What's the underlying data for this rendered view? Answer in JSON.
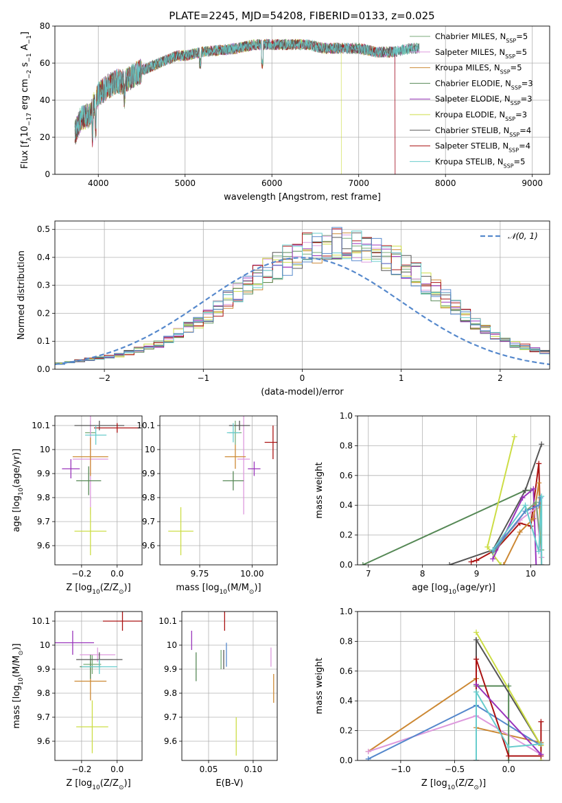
{
  "figure_title": "PLATE=2245, MJD=54208, FIBERID=0133, z=0.025",
  "colors": {
    "Chabrier MILES": "#77aa77",
    "Salpeter MILES": "#dd99dd",
    "Kroupa MILES": "#cc8833",
    "Chabrier ELODIE": "#558855",
    "Salpeter ELODIE": "#9933bb",
    "Kroupa ELODIE": "#ccdd44",
    "Chabrier STELIB": "#555555",
    "Salpeter STELIB": "#aa1111",
    "Kroupa STELIB": "#66cccc",
    "normal": "#5588cc"
  },
  "chart_data": [
    {
      "id": "spectrum",
      "type": "line",
      "title": "PLATE=2245, MJD=54208, FIBERID=0133, z=0.025",
      "xlabel": "wavelength [Angstrom, rest frame]",
      "ylabel_parts": [
        "Flux [f",
        "λ",
        "10",
        "−17",
        " erg cm",
        "−2",
        " s",
        "−1",
        " A",
        "−1",
        "]"
      ],
      "xlim": [
        3500,
        9200
      ],
      "ylim": [
        0,
        80
      ],
      "xticks": [
        4000,
        5000,
        6000,
        7000,
        8000,
        9000
      ],
      "yticks": [
        0,
        20,
        40,
        60,
        80
      ],
      "legend_position": "upper-right",
      "legend": [
        {
          "name": "Chabrier MILES",
          "nssp": "5"
        },
        {
          "name": "Salpeter MILES",
          "nssp": "5"
        },
        {
          "name": "Kroupa MILES",
          "nssp": "5"
        },
        {
          "name": "Chabrier ELODIE",
          "nssp": "3"
        },
        {
          "name": "Salpeter ELODIE",
          "nssp": "3"
        },
        {
          "name": "Kroupa ELODIE",
          "nssp": "3"
        },
        {
          "name": "Chabrier STELIB",
          "nssp": "4"
        },
        {
          "name": "Salpeter STELIB",
          "nssp": "4"
        },
        {
          "name": "Kroupa STELIB",
          "nssp": "5"
        }
      ],
      "continuum_x": [
        3730,
        3800,
        3900,
        4000,
        4100,
        4200,
        4300,
        4400,
        4500,
        4600,
        4700,
        4800,
        4900,
        5000,
        5200,
        5400,
        5600,
        5800,
        6000,
        6200,
        6400,
        6600,
        6800,
        7000,
        7200,
        7400,
        7600,
        7700
      ],
      "continuum_y": [
        22,
        30,
        32,
        43,
        47,
        50,
        50,
        53,
        56,
        58,
        60,
        62,
        64,
        64,
        66,
        67,
        68,
        70,
        70,
        70,
        70,
        68,
        68,
        68,
        66,
        66,
        68,
        68
      ],
      "model_ends": [
        {
          "model": "Kroupa ELODIE",
          "x": 6800
        },
        {
          "model": "Salpeter STELIB",
          "x": 7420
        },
        {
          "model": "Salpeter ELODIE",
          "x": 7420
        },
        {
          "model": "Kroupa MILES",
          "x": 7420
        }
      ]
    },
    {
      "id": "residuals",
      "type": "histogram",
      "xlabel": "(data-model)/error",
      "ylabel": "Normed distribution",
      "xlim": [
        -2.5,
        2.5
      ],
      "ylim": [
        0,
        0.53
      ],
      "xticks": [
        -2,
        -1,
        0,
        1,
        2
      ],
      "xtick_labels": [
        "−2",
        "−1",
        "0",
        "1",
        "2"
      ],
      "yticks": [
        0.0,
        0.1,
        0.2,
        0.3,
        0.4,
        0.5
      ],
      "bin_width": 0.1,
      "envelope": [
        0.02,
        0.025,
        0.03,
        0.035,
        0.04,
        0.045,
        0.05,
        0.06,
        0.07,
        0.08,
        0.09,
        0.11,
        0.13,
        0.15,
        0.17,
        0.19,
        0.22,
        0.25,
        0.28,
        0.31,
        0.33,
        0.35,
        0.37,
        0.39,
        0.41,
        0.43,
        0.44,
        0.45,
        0.45,
        0.44,
        0.44,
        0.43,
        0.42,
        0.41,
        0.39,
        0.37,
        0.34,
        0.31,
        0.28,
        0.25,
        0.22,
        0.19,
        0.16,
        0.14,
        0.12,
        0.1,
        0.09,
        0.08,
        0.07,
        0.06,
        0.05,
        0.045,
        0.04,
        0.035,
        0.03,
        0.025,
        0.025,
        0.02,
        0.02,
        0.02
      ],
      "gaussian_label": "𝒩(0, 1)",
      "legend_position": "upper-right"
    },
    {
      "id": "age-vs-Z",
      "type": "errorbar",
      "xlabel_parts": [
        "Z [log",
        "10",
        "(Z/Z",
        "⊙",
        ")]"
      ],
      "ylabel_parts": [
        "age  [log",
        "10",
        "(age/yr)]"
      ],
      "xlim": [
        -0.35,
        0.14
      ],
      "ylim": [
        9.52,
        10.14
      ],
      "xticks": [
        -0.2,
        0.0
      ],
      "xtick_labels": [
        "−0.2",
        "0.0"
      ],
      "yticks": [
        9.6,
        9.7,
        9.8,
        9.9,
        10.0,
        10.1
      ],
      "points": [
        {
          "model": "Chabrier MILES",
          "x": -0.15,
          "xerr": 0.03,
          "y": 10.07,
          "yerr": 0.05
        },
        {
          "model": "Salpeter MILES",
          "x": -0.15,
          "xerr": 0.1,
          "y": 9.96,
          "yerr": 0.23
        },
        {
          "model": "Kroupa MILES",
          "x": -0.15,
          "xerr": 0.1,
          "y": 9.97,
          "yerr": 0.08
        },
        {
          "model": "Chabrier ELODIE",
          "x": -0.16,
          "xerr": 0.07,
          "y": 9.87,
          "yerr": 0.06
        },
        {
          "model": "Salpeter ELODIE",
          "x": -0.26,
          "xerr": 0.05,
          "y": 9.92,
          "yerr": 0.04
        },
        {
          "model": "Kroupa ELODIE",
          "x": -0.15,
          "xerr": 0.09,
          "y": 9.66,
          "yerr": 0.1
        },
        {
          "model": "Chabrier STELIB",
          "x": -0.1,
          "xerr": 0.14,
          "y": 10.1,
          "yerr": 0.02
        },
        {
          "model": "Salpeter STELIB",
          "x": 0.0,
          "xerr": 0.13,
          "y": 10.09,
          "yerr": 0.02
        },
        {
          "model": "Kroupa STELIB",
          "x": -0.12,
          "xerr": 0.06,
          "y": 10.06,
          "yerr": 0.04
        }
      ]
    },
    {
      "id": "age-vs-mass",
      "type": "errorbar",
      "xlabel_parts": [
        "mass [log",
        "10",
        "(M/M",
        "⊙",
        ")]"
      ],
      "xlim": [
        9.56,
        10.12
      ],
      "ylim": [
        9.52,
        10.14
      ],
      "xticks": [
        9.75,
        10.0
      ],
      "xtick_labels": [
        "9.75",
        "10.00"
      ],
      "yticks": [
        9.6,
        9.7,
        9.8,
        9.9,
        10.0,
        10.1
      ],
      "points": [
        {
          "model": "Chabrier MILES",
          "x": 9.92,
          "xerr": 0.03,
          "y": 10.07,
          "yerr": 0.05
        },
        {
          "model": "Salpeter MILES",
          "x": 9.96,
          "xerr": 0.03,
          "y": 9.96,
          "yerr": 0.23
        },
        {
          "model": "Kroupa MILES",
          "x": 9.92,
          "xerr": 0.05,
          "y": 9.97,
          "yerr": 0.05
        },
        {
          "model": "Chabrier ELODIE",
          "x": 9.91,
          "xerr": 0.05,
          "y": 9.87,
          "yerr": 0.04
        },
        {
          "model": "Salpeter ELODIE",
          "x": 10.01,
          "xerr": 0.03,
          "y": 9.92,
          "yerr": 0.03
        },
        {
          "model": "Kroupa ELODIE",
          "x": 9.66,
          "xerr": 0.06,
          "y": 9.66,
          "yerr": 0.1
        },
        {
          "model": "Chabrier STELIB",
          "x": 9.94,
          "xerr": 0.05,
          "y": 10.1,
          "yerr": 0.02
        },
        {
          "model": "Salpeter STELIB",
          "x": 10.1,
          "xerr": 0.04,
          "y": 10.03,
          "yerr": 0.07
        },
        {
          "model": "Kroupa STELIB",
          "x": 9.91,
          "xerr": 0.03,
          "y": 10.07,
          "yerr": 0.04
        }
      ]
    },
    {
      "id": "weight-vs-age",
      "type": "line",
      "xlabel_parts": [
        "age  [log",
        "10",
        "(age/yr)]"
      ],
      "ylabel": "mass weight",
      "xlim": [
        6.8,
        10.35
      ],
      "ylim": [
        0,
        1.0
      ],
      "xticks": [
        7,
        8,
        9,
        10
      ],
      "yticks": [
        0.0,
        0.2,
        0.4,
        0.6,
        0.8,
        1.0
      ],
      "series": [
        {
          "model": "Chabrier ELODIE",
          "x": [
            6.9,
            9.9,
            10.0
          ],
          "y": [
            0.0,
            0.5,
            0.5
          ]
        },
        {
          "model": "Chabrier STELIB",
          "x": [
            8.5,
            9.3,
            9.9,
            10.2
          ],
          "y": [
            0.0,
            0.1,
            0.5,
            0.81
          ]
        },
        {
          "model": "Kroupa ELODIE",
          "x": [
            9.45,
            9.2,
            9.7
          ],
          "y": [
            0.0,
            0.12,
            0.86
          ]
        },
        {
          "model": "Salpeter STELIB",
          "x": [
            8.9,
            9.0,
            9.35,
            9.8,
            10.0,
            10.15,
            10.2
          ],
          "y": [
            0.02,
            0.03,
            0.1,
            0.28,
            0.26,
            0.68,
            0.0
          ]
        },
        {
          "model": "Salpeter ELODIE",
          "x": [
            9.3,
            9.85,
            10.05,
            10.1
          ],
          "y": [
            0.04,
            0.45,
            0.51,
            0.0
          ]
        },
        {
          "model": "Kroupa MILES",
          "x": [
            9.5,
            9.8,
            10.05,
            10.15,
            10.2
          ],
          "y": [
            0.0,
            0.22,
            0.31,
            0.55,
            0.05
          ]
        },
        {
          "model": "Salpeter MILES",
          "x": [
            9.3,
            9.8,
            10.1,
            10.2
          ],
          "y": [
            0.1,
            0.3,
            0.38,
            0.05
          ]
        },
        {
          "model": "Chabrier MILES",
          "x": [
            9.3,
            9.9,
            10.1,
            10.2
          ],
          "y": [
            0.08,
            0.36,
            0.42,
            0.1
          ]
        },
        {
          "model": "normal",
          "x": [
            9.3,
            9.9,
            10.15,
            10.18
          ],
          "y": [
            0.09,
            0.36,
            0.4,
            0.45
          ]
        },
        {
          "model": "Kroupa STELIB",
          "x": [
            9.3,
            9.9,
            10.15,
            10.2,
            10.2
          ],
          "y": [
            0.1,
            0.4,
            0.09,
            0.46,
            0.0
          ]
        }
      ]
    },
    {
      "id": "mass-vs-Z",
      "type": "errorbar",
      "xlabel_parts": [
        "Z [log",
        "10",
        "(Z/Z",
        "⊙",
        ")]"
      ],
      "ylabel_parts": [
        "mass [log",
        "10",
        "(M/M",
        "⊙",
        ")]"
      ],
      "xlim": [
        -0.35,
        0.14
      ],
      "ylim": [
        9.52,
        10.14
      ],
      "xticks": [
        -0.2,
        0.0
      ],
      "xtick_labels": [
        "−0.2",
        "0.0"
      ],
      "yticks": [
        9.6,
        9.7,
        9.8,
        9.9,
        10.0,
        10.1
      ],
      "points": [
        {
          "model": "Chabrier MILES",
          "x": -0.14,
          "xerr": 0.05,
          "y": 9.92,
          "yerr": 0.04
        },
        {
          "model": "Salpeter MILES",
          "x": -0.11,
          "xerr": 0.1,
          "y": 9.96,
          "yerr": 0.03
        },
        {
          "model": "Kroupa MILES",
          "x": -0.15,
          "xerr": 0.09,
          "y": 9.85,
          "yerr": 0.08
        },
        {
          "model": "Chabrier ELODIE",
          "x": -0.15,
          "xerr": 0.06,
          "y": 9.91,
          "yerr": 0.05
        },
        {
          "model": "Salpeter ELODIE",
          "x": -0.25,
          "xerr": 0.12,
          "y": 10.01,
          "yerr": 0.05
        },
        {
          "model": "Kroupa ELODIE",
          "x": -0.14,
          "xerr": 0.09,
          "y": 9.66,
          "yerr": 0.11
        },
        {
          "model": "Chabrier STELIB",
          "x": -0.1,
          "xerr": 0.13,
          "y": 9.94,
          "yerr": 0.03
        },
        {
          "model": "Salpeter STELIB",
          "x": 0.03,
          "xerr": 0.11,
          "y": 10.1,
          "yerr": 0.04
        },
        {
          "model": "Kroupa STELIB",
          "x": -0.1,
          "xerr": 0.1,
          "y": 9.91,
          "yerr": 0.03
        }
      ]
    },
    {
      "id": "mass-vs-ebv",
      "type": "errorbar",
      "xlabel": "E(B-V)",
      "xlim": [
        0.02,
        0.127
      ],
      "ylim": [
        9.52,
        10.14
      ],
      "xticks": [
        0.05,
        0.1
      ],
      "xtick_labels": [
        "0.05",
        "0.10"
      ],
      "yticks": [
        9.6,
        9.7,
        9.8,
        9.9,
        10.0,
        10.1
      ],
      "points": [
        {
          "model": "Chabrier MILES",
          "x": 0.064,
          "xerr": 0,
          "y": 9.94,
          "yerr": 0.04
        },
        {
          "model": "Salpeter MILES",
          "x": 0.12,
          "xerr": 0,
          "y": 9.95,
          "yerr": 0.04
        },
        {
          "model": "Kroupa MILES",
          "x": 0.123,
          "xerr": 0,
          "y": 9.82,
          "yerr": 0.06
        },
        {
          "model": "Chabrier ELODIE",
          "x": 0.036,
          "xerr": 0,
          "y": 9.91,
          "yerr": 0.06
        },
        {
          "model": "Salpeter ELODIE",
          "x": 0.031,
          "xerr": 0,
          "y": 10.02,
          "yerr": 0.04
        },
        {
          "model": "Kroupa ELODIE",
          "x": 0.081,
          "xerr": 0,
          "y": 9.62,
          "yerr": 0.08
        },
        {
          "model": "Chabrier STELIB",
          "x": 0.067,
          "xerr": 0,
          "y": 9.94,
          "yerr": 0.04
        },
        {
          "model": "Salpeter STELIB",
          "x": 0.068,
          "xerr": 0,
          "y": 10.1,
          "yerr": 0.04
        },
        {
          "model": "normal",
          "x": 0.07,
          "xerr": 0,
          "y": 9.96,
          "yerr": 0.05
        }
      ]
    },
    {
      "id": "weight-vs-Z",
      "type": "line",
      "xlabel_parts": [
        "Z [log",
        "10",
        "(Z/Z",
        "⊙",
        ")]"
      ],
      "ylabel": "mass weight",
      "xlim": [
        -1.4,
        0.38
      ],
      "ylim": [
        0,
        1.0
      ],
      "xticks": [
        -1.0,
        -0.5,
        0.0
      ],
      "xtick_labels": [
        "−1.0",
        "−0.5",
        "0.0"
      ],
      "yticks": [
        0.0,
        0.2,
        0.4,
        0.6,
        0.8,
        1.0
      ],
      "series": [
        {
          "model": "Kroupa MILES",
          "x": [
            -1.3,
            -0.3,
            -0.3,
            0.3
          ],
          "y": [
            0.06,
            0.55,
            0.22,
            0.12
          ]
        },
        {
          "model": "Salpeter MILES",
          "x": [
            -1.3,
            -0.3,
            0.3
          ],
          "y": [
            0.06,
            0.3,
            0.04
          ]
        },
        {
          "model": "normal",
          "x": [
            -1.3,
            -0.3,
            0.3
          ],
          "y": [
            0.01,
            0.37,
            0.1
          ]
        },
        {
          "model": "Chabrier ELODIE",
          "x": [
            -0.3,
            0.0,
            0.0
          ],
          "y": [
            0.5,
            0.5,
            0.0
          ]
        },
        {
          "model": "Chabrier STELIB",
          "x": [
            -0.3,
            -0.3,
            0.3
          ],
          "y": [
            0.0,
            0.81,
            0.1
          ]
        },
        {
          "model": "Kroupa ELODIE",
          "x": [
            -0.3,
            0.3,
            0.3
          ],
          "y": [
            0.86,
            0.1,
            0.0
          ]
        },
        {
          "model": "Salpeter STELIB",
          "x": [
            -0.3,
            -0.3,
            0.0,
            0.3,
            0.3
          ],
          "y": [
            0.0,
            0.68,
            0.03,
            0.03,
            0.26
          ]
        },
        {
          "model": "Salpeter ELODIE",
          "x": [
            -0.3,
            0.3
          ],
          "y": [
            0.51,
            0.04
          ]
        },
        {
          "model": "Kroupa STELIB",
          "x": [
            -0.3,
            -0.3,
            0.0,
            0.3
          ],
          "y": [
            0.0,
            0.46,
            0.09,
            0.11
          ]
        }
      ]
    }
  ]
}
